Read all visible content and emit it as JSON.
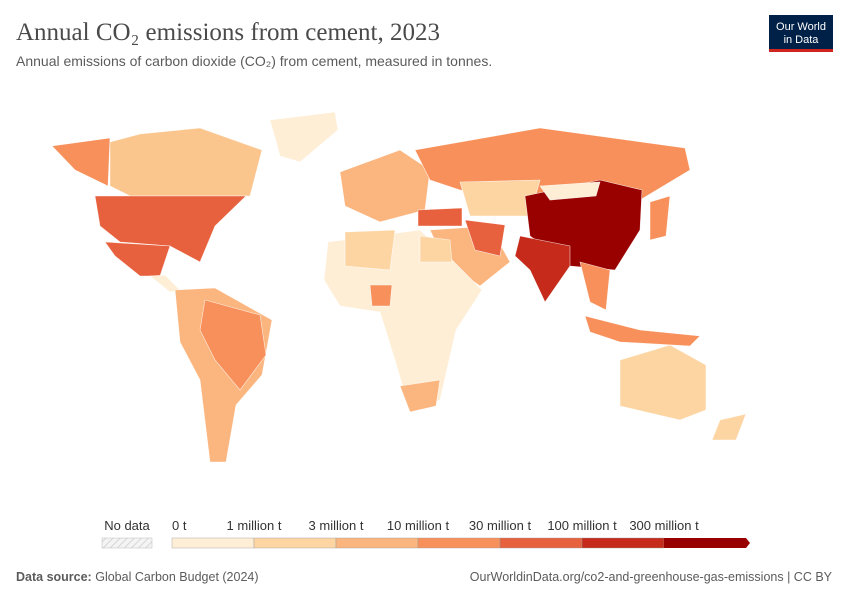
{
  "header": {
    "title": "Annual CO₂ emissions from cement, 2023",
    "subtitle": "Annual emissions of carbon dioxide (CO₂) from cement, measured in tonnes."
  },
  "logo": {
    "line1": "Our World",
    "line2": "in Data"
  },
  "legend": {
    "no_data": "No data",
    "labels": [
      "0 t",
      "1 million t",
      "3 million t",
      "10 million t",
      "30 million t",
      "100 million t",
      "300 million t"
    ],
    "colors": [
      "#feeed6",
      "#fdd5a3",
      "#fbb57f",
      "#f7905a",
      "#e8613e",
      "#c52a1a",
      "#990000"
    ]
  },
  "footer": {
    "source_label": "Data source:",
    "source": "Global Carbon Budget (2024)",
    "url": "OurWorldinData.org/co2-and-greenhouse-gas-emissions | CC BY"
  }
}
